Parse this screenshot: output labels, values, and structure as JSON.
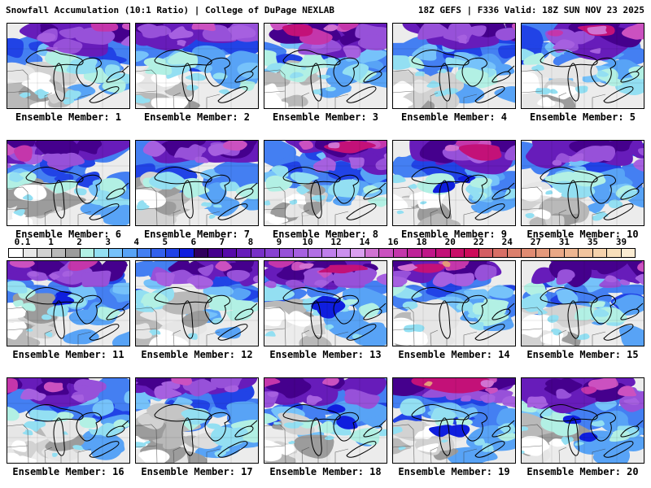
{
  "header": {
    "left": "Snowfall Accumulation (10:1 Ratio) | College of DuPage NEXLAB",
    "right": "18Z GEFS | F336 Valid: 18Z SUN NOV 23 2025"
  },
  "colorbar": {
    "ticks": [
      "0.1",
      "1",
      "2",
      "3",
      "4",
      "5",
      "6",
      "7",
      "8",
      "9",
      "10",
      "12",
      "14",
      "16",
      "18",
      "20",
      "22",
      "24",
      "27",
      "31",
      "35",
      "39"
    ],
    "colors": [
      "#ffffff",
      "#e8e8e8",
      "#d2d2d2",
      "#b9b9b9",
      "#9c9c9c",
      "#b2f0e4",
      "#93dff2",
      "#76c2fa",
      "#58a3f6",
      "#447ff2",
      "#3260ec",
      "#2143e6",
      "#0f1ede",
      "#31005e",
      "#45008d",
      "#5609a9",
      "#671cba",
      "#7830c7",
      "#8841d1",
      "#9751d9",
      "#a660e0",
      "#b26fe5",
      "#bf7feb",
      "#cc90ee",
      "#da9fef",
      "#d173d2",
      "#cb51c0",
      "#c436ab",
      "#bf2398",
      "#bf1688",
      "#c31178",
      "#c80e68",
      "#cd0c5a",
      "#d45e63",
      "#d86f66",
      "#dc7f6c",
      "#e08b72",
      "#e4997b",
      "#e9a886",
      "#edb691",
      "#f1c49e",
      "#f5d2ac",
      "#f8dfbb",
      "#fbecd2"
    ]
  },
  "panels": [
    {
      "label": "Ensemble Member: 1"
    },
    {
      "label": "Ensemble Member: 2"
    },
    {
      "label": "Ensemble Member: 3"
    },
    {
      "label": "Ensemble Member: 4"
    },
    {
      "label": "Ensemble Member: 5"
    },
    {
      "label": "Ensemble Member: 6"
    },
    {
      "label": "Ensemble Member: 7"
    },
    {
      "label": "Ensemble Member: 8"
    },
    {
      "label": "Ensemble Member: 9"
    },
    {
      "label": "Ensemble Member: 10"
    },
    {
      "label": "Ensemble Member: 11"
    },
    {
      "label": "Ensemble Member: 12"
    },
    {
      "label": "Ensemble Member: 13"
    },
    {
      "label": "Ensemble Member: 14"
    },
    {
      "label": "Ensemble Member: 15"
    },
    {
      "label": "Ensemble Member: 16"
    },
    {
      "label": "Ensemble Member: 17"
    },
    {
      "label": "Ensemble Member: 18"
    },
    {
      "label": "Ensemble Member: 19"
    },
    {
      "label": "Ensemble Member: 20"
    }
  ]
}
